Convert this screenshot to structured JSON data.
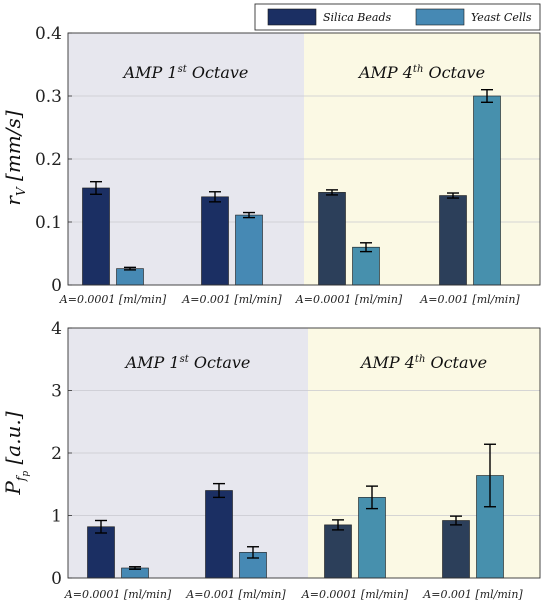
{
  "legend": [
    {
      "label": "Silica Beads"
    },
    {
      "label": "Yeast Cells"
    }
  ],
  "chart_data": [
    {
      "type": "bar",
      "ylabel": "r_V [mm/s]",
      "ylim": [
        0,
        0.4
      ],
      "yticks": [
        "0",
        "0.1",
        "0.2",
        "0.3",
        "0.4"
      ],
      "regions": [
        {
          "label": "AMP 1",
          "sup": "st",
          "rest": " Octave",
          "color": "#e7e7ee"
        },
        {
          "label": "AMP 4",
          "sup": "th",
          "rest": " Octave",
          "color": "#fbf9e4"
        }
      ],
      "categories": [
        "A=0.0001 [ml/min]",
        "A=0.001 [ml/min]",
        "A=0.0001 [ml/min]",
        "A=0.001 [ml/min]"
      ],
      "series": [
        {
          "name": "Silica Beads",
          "values": [
            0.154,
            0.14,
            0.147,
            0.142
          ],
          "errors": [
            0.01,
            0.008,
            0.004,
            0.004
          ]
        },
        {
          "name": "Yeast Cells",
          "values": [
            0.026,
            0.111,
            0.06,
            0.3
          ],
          "errors": [
            0.002,
            0.004,
            0.007,
            0.01
          ]
        }
      ],
      "grid": true,
      "legend_position": "top-right"
    },
    {
      "type": "bar",
      "ylabel": "P_fp [a.u.]",
      "ylim": [
        0,
        4
      ],
      "yticks": [
        "0",
        "1",
        "2",
        "3",
        "4"
      ],
      "regions": [
        {
          "label": "AMP 1",
          "sup": "st",
          "rest": " Octave",
          "color": "#e7e7ee"
        },
        {
          "label": "AMP 4",
          "sup": "th",
          "rest": " Octave",
          "color": "#fbf9e4"
        }
      ],
      "categories": [
        "A=0.0001 [ml/min]",
        "A=0.001 [ml/min]",
        "A=0.0001 [ml/min]",
        "A=0.001 [ml/min]"
      ],
      "series": [
        {
          "name": "Silica Beads",
          "values": [
            0.82,
            1.4,
            0.85,
            0.92
          ],
          "errors": [
            0.1,
            0.11,
            0.08,
            0.07
          ]
        },
        {
          "name": "Yeast Cells",
          "values": [
            0.16,
            0.41,
            1.29,
            1.64
          ],
          "errors": [
            0.02,
            0.09,
            0.18,
            0.5
          ]
        }
      ],
      "grid": true
    }
  ]
}
